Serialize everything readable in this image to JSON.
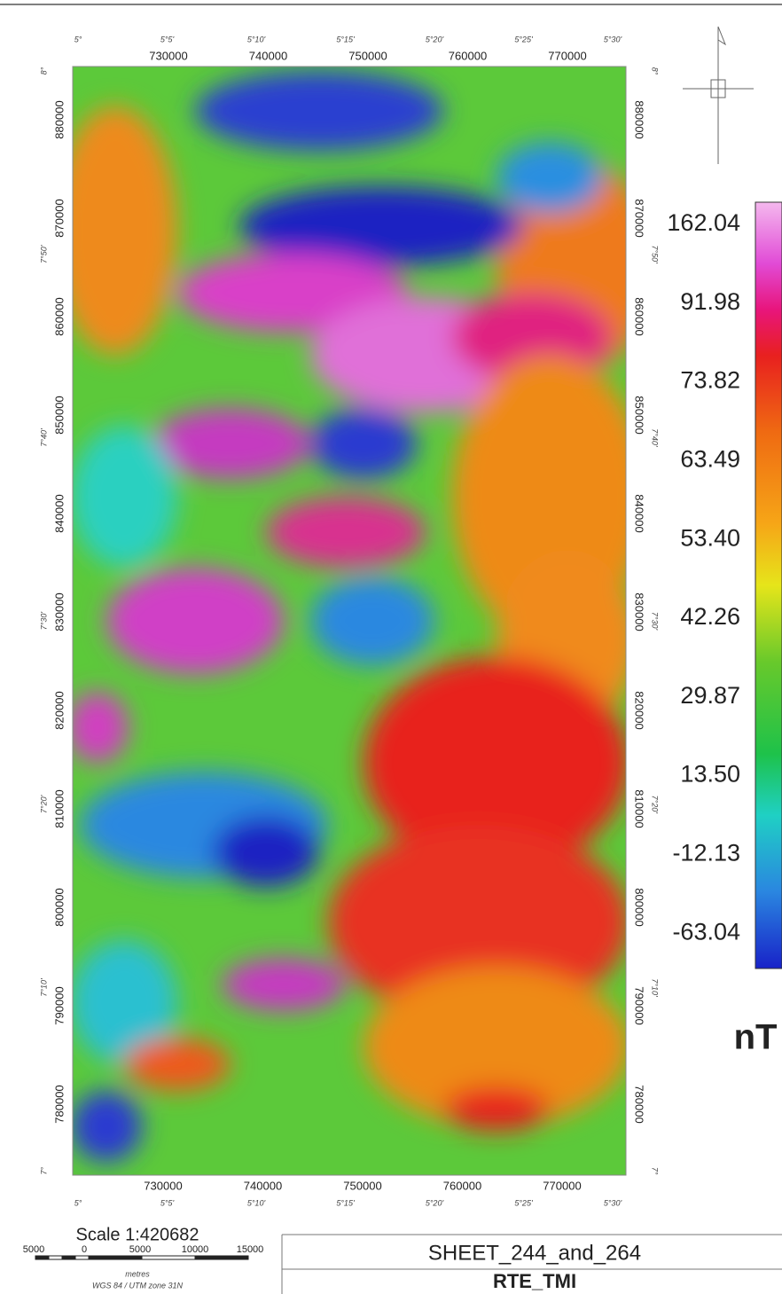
{
  "map": {
    "top_lon_ticks": [
      "5°",
      "5°5'",
      "5°10'",
      "5°15'",
      "5°20'",
      "5°25'",
      "5°30'"
    ],
    "top_x_ticks": [
      "730000",
      "740000",
      "750000",
      "760000",
      "770000"
    ],
    "bottom_x_ticks": [
      "730000",
      "740000",
      "750000",
      "760000",
      "770000"
    ],
    "bottom_lon_ticks": [
      "5°",
      "5°5'",
      "5°10'",
      "5°15'",
      "5°20'",
      "5°25'",
      "5°30'"
    ],
    "left_y_ticks": [
      "880000",
      "870000",
      "860000",
      "850000",
      "840000",
      "830000",
      "820000",
      "810000",
      "800000",
      "790000",
      "780000"
    ],
    "left_lat_ticks": [
      "8°",
      "7°50'",
      "7°40'",
      "7°30'",
      "7°20'",
      "7°10'",
      "7°"
    ],
    "right_y_ticks": [
      "880000",
      "870000",
      "860000",
      "850000",
      "840000",
      "830000",
      "820000",
      "810000",
      "800000",
      "790000",
      "780000"
    ],
    "right_lat_ticks": [
      "8°",
      "7°50'",
      "7°40'",
      "7°30'",
      "7°20'",
      "7°10'",
      "7°"
    ]
  },
  "legend": {
    "labels": [
      "162.04",
      "91.98",
      "73.82",
      "63.49",
      "53.40",
      "42.26",
      "29.87",
      "13.50",
      "-12.13",
      "-63.04"
    ],
    "unit": "nT"
  },
  "scale": {
    "title": "Scale 1:420682",
    "ticks": [
      "5000",
      "0",
      "5000",
      "10000",
      "15000"
    ],
    "unit": "metres",
    "projection": "WGS 84 / UTM zone 31N"
  },
  "title_block": {
    "sheet": "SHEET_244_and_264",
    "layer": "RTE_TMI"
  }
}
